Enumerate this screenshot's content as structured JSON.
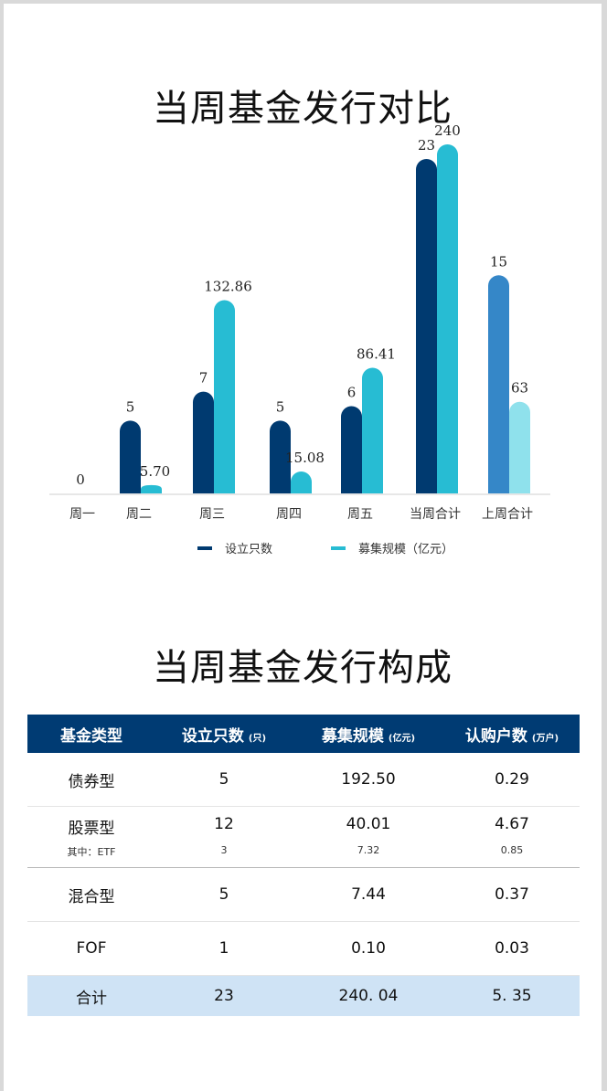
{
  "titles": {
    "chart": "当周基金发行对比",
    "table": "当周基金发行构成"
  },
  "colors": {
    "count_bar": "#003a70",
    "scale_bar": "#27bcd3",
    "last_week_count": "#3587c8",
    "last_week_scale": "#8fe1ec",
    "table_header": "#003b73",
    "total_row": "#cfe3f5"
  },
  "chart_data": {
    "type": "bar",
    "categories": [
      "周一",
      "周二",
      "周三",
      "周四",
      "周五",
      "当周合计",
      "上周合计"
    ],
    "series": [
      {
        "name": "设立只数",
        "values": [
          0,
          5,
          7,
          5,
          6,
          23,
          15
        ],
        "labels": [
          "0",
          "5",
          "7",
          "5",
          "6",
          "23",
          "15"
        ]
      },
      {
        "name": "募集规模（亿元）",
        "values": [
          0,
          5.7,
          132.86,
          15.08,
          86.41,
          240,
          63
        ],
        "labels": [
          "",
          "5.70",
          "132.86",
          "15.08",
          "86.41",
          "240",
          "63"
        ]
      }
    ],
    "legend": [
      "设立只数",
      "募集规模（亿元）"
    ],
    "legend_position": "bottom"
  },
  "table": {
    "headers": [
      {
        "label": "基金类型",
        "unit": ""
      },
      {
        "label": "设立只数",
        "unit": "(只)"
      },
      {
        "label": "募集规模",
        "unit": "(亿元)"
      },
      {
        "label": "认购户数",
        "unit": "(万户)"
      }
    ],
    "rows": [
      {
        "type": "债券型",
        "count": "5",
        "scale": "192.50",
        "subscribers": "0.29"
      },
      {
        "type": "股票型",
        "count": "12",
        "scale": "40.01",
        "subscribers": "4.67",
        "sub": {
          "type": "其中：ETF",
          "count": "3",
          "scale": "7.32",
          "subscribers": "0.85"
        }
      },
      {
        "type": "混合型",
        "count": "5",
        "scale": "7.44",
        "subscribers": "0.37"
      },
      {
        "type": "FOF",
        "count": "1",
        "scale": "0.10",
        "subscribers": "0.03"
      }
    ],
    "total": {
      "type": "合计",
      "count": "23",
      "scale": "240. 04",
      "subscribers": "5. 35"
    }
  }
}
